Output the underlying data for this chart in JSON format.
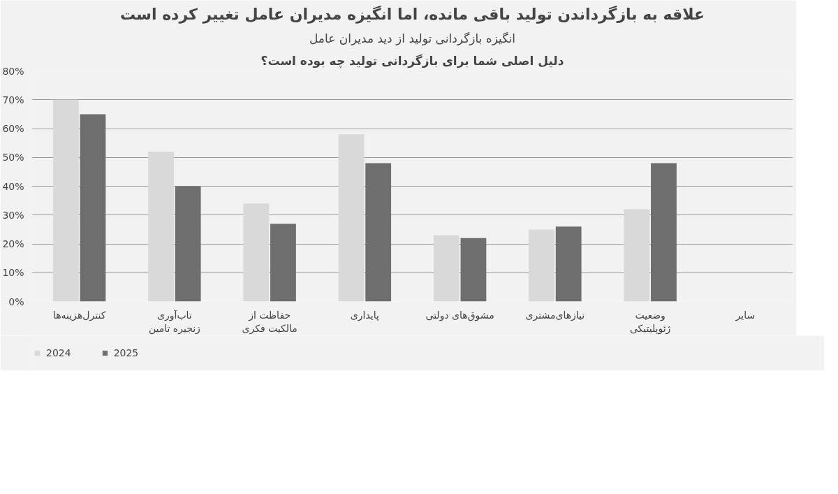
{
  "chart_data": {
    "type": "bar",
    "title": "علاقه به بازگرداندن تولید باقی مانده، اما انگیزه مدیران عامل تغییر کرده است",
    "subtitle": "انگیزه بازگردانی تولید از دید مدیران عامل",
    "annotations": [
      "دلیل اصلی شما برای بازگردانی تولید چه بوده است؟"
    ],
    "categories": [
      "کنترل‌هزینه‌ها",
      "تاب‌آوری\nزنجیره تامین",
      "حفاظت از\nمالکیت فکری",
      "پایداری",
      "مشوق‌های دولتی",
      "نیازهای‌مشتری",
      "وضعیت\nژئوپلیتیکی",
      "سایر"
    ],
    "series": [
      {
        "name": "2024",
        "color": "#d9d9d9",
        "values": [
          70,
          52,
          34,
          58,
          23,
          25,
          32,
          null
        ]
      },
      {
        "name": "2025",
        "color": "#6e6e6e",
        "values": [
          65,
          40,
          27,
          48,
          22,
          26,
          48,
          null
        ]
      }
    ],
    "ylim": [
      0,
      80
    ],
    "yticks": [
      {
        "value": 0,
        "label": "0%"
      },
      {
        "value": 10,
        "label": "10%"
      },
      {
        "value": 20,
        "label": "20%"
      },
      {
        "value": 30,
        "label": "30%"
      },
      {
        "value": 40,
        "label": "40%"
      },
      {
        "value": 50,
        "label": "50%"
      },
      {
        "value": 60,
        "label": "60%"
      },
      {
        "value": 70,
        "label": "70%"
      },
      {
        "value": 80,
        "label": "80%"
      }
    ],
    "grid": "y",
    "legend": "bottom left"
  }
}
